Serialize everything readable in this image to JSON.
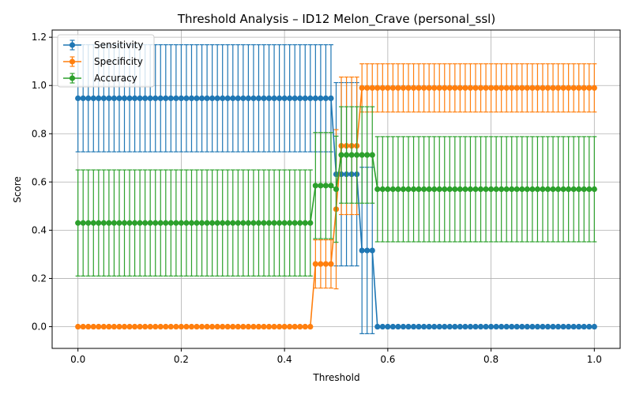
{
  "chart_data": {
    "type": "line",
    "title": "Threshold Analysis – ID12 Melon_Crave (personal_ssl)",
    "xlabel": "Threshold",
    "ylabel": "Score",
    "xlim": [
      -0.05,
      1.05
    ],
    "ylim": [
      -0.09,
      1.23
    ],
    "x_ticks": [
      0.0,
      0.2,
      0.4,
      0.6,
      0.8,
      1.0
    ],
    "x_tick_labels": [
      "0.0",
      "0.2",
      "0.4",
      "0.6",
      "0.8",
      "1.0"
    ],
    "y_ticks": [
      0.0,
      0.2,
      0.4,
      0.6,
      0.8,
      1.0,
      1.2
    ],
    "y_tick_labels": [
      "0.0",
      "0.2",
      "0.4",
      "0.6",
      "0.8",
      "1.0",
      "1.2"
    ],
    "grid": true,
    "legend_position": "top-left",
    "error_bars": true,
    "x_range": {
      "start": 0.0,
      "stop": 1.0,
      "count": 101
    },
    "series": [
      {
        "name": "Sensitivity",
        "color": "#1f77b4",
        "segments": [
          {
            "x_from": 0.0,
            "x_to": 0.49,
            "y": 0.947,
            "err": 0.222
          },
          {
            "x_from": 0.5,
            "x_to": 0.54,
            "y": 0.632,
            "err": 0.38
          },
          {
            "x_from": 0.55,
            "x_to": 0.57,
            "y": 0.316,
            "err": 0.345
          },
          {
            "x_from": 0.58,
            "x_to": 1.0,
            "y": 0.0,
            "err": 0.0
          }
        ]
      },
      {
        "name": "Specificity",
        "color": "#ff7f0e",
        "segments": [
          {
            "x_from": 0.0,
            "x_to": 0.45,
            "y": 0.0,
            "err": 0.0
          },
          {
            "x_from": 0.46,
            "x_to": 0.49,
            "y": 0.26,
            "err": 0.1
          },
          {
            "x_from": 0.5,
            "x_to": 0.5,
            "y": 0.487,
            "err": 0.33
          },
          {
            "x_from": 0.51,
            "x_to": 0.54,
            "y": 0.75,
            "err": 0.285
          },
          {
            "x_from": 0.55,
            "x_to": 1.0,
            "y": 0.99,
            "err": 0.1
          }
        ]
      },
      {
        "name": "Accuracy",
        "color": "#2ca02c",
        "segments": [
          {
            "x_from": 0.0,
            "x_to": 0.45,
            "y": 0.43,
            "err": 0.22
          },
          {
            "x_from": 0.46,
            "x_to": 0.49,
            "y": 0.585,
            "err": 0.22
          },
          {
            "x_from": 0.5,
            "x_to": 0.5,
            "y": 0.57,
            "err": 0.22
          },
          {
            "x_from": 0.51,
            "x_to": 0.57,
            "y": 0.712,
            "err": 0.2
          },
          {
            "x_from": 0.58,
            "x_to": 1.0,
            "y": 0.57,
            "err": 0.218
          }
        ]
      }
    ]
  }
}
